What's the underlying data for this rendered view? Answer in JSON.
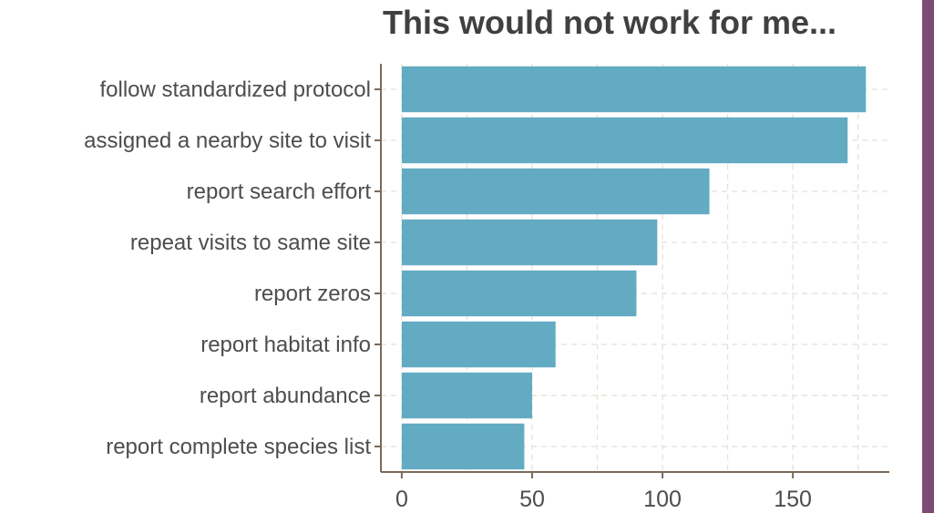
{
  "chart_data": {
    "type": "bar",
    "orientation": "horizontal",
    "title": "This would not work for me...",
    "xlabel": "",
    "ylabel": "",
    "categories": [
      "follow standardized protocol",
      "assigned a nearby site to visit",
      "report search effort",
      "repeat visits to same site",
      "report zeros",
      "report habitat info",
      "report abundance",
      "report complete species list"
    ],
    "values": [
      178,
      171,
      118,
      98,
      90,
      59,
      50,
      47
    ],
    "xlim": [
      -8,
      187
    ],
    "xticks": [
      0,
      50,
      100,
      150
    ],
    "grid": true,
    "bar_color": "#63abc3",
    "axis_color": "#7a6a58",
    "grid_color": "#e8dfd6"
  },
  "decor": {
    "side_band_color": "#7a4c72"
  }
}
